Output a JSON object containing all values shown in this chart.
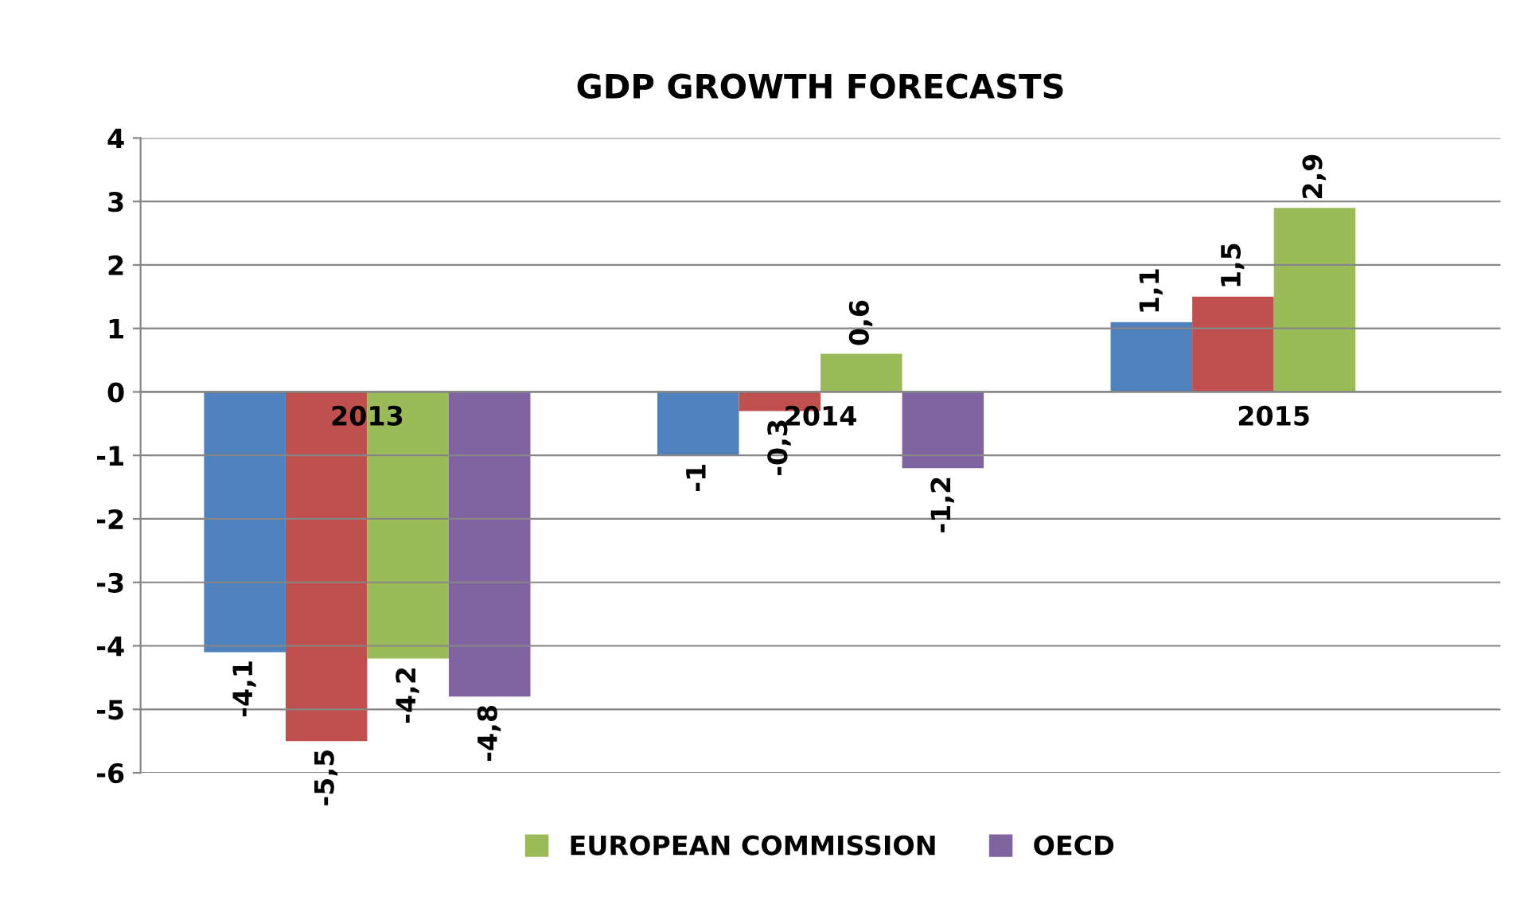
{
  "chart_data": {
    "type": "bar",
    "title": "GDP GROWTH FORECASTS",
    "categories": [
      "2013",
      "2014",
      "2015"
    ],
    "series": [
      {
        "color": "#4f81bd",
        "values": [
          -4.1,
          -1,
          1.1
        ],
        "value_labels": [
          "-4,1",
          "-1",
          "1,1"
        ]
      },
      {
        "color": "#c0504d",
        "values": [
          -5.5,
          -0.3,
          1.5
        ],
        "value_labels": [
          "-5,5",
          "-0,3",
          "1,5"
        ]
      },
      {
        "name": "EUROPEAN COMMISSION",
        "color": "#9bbb59",
        "values": [
          -4.2,
          0.6,
          2.9
        ],
        "value_labels": [
          "-4,2",
          "0,6",
          "2,9"
        ]
      },
      {
        "name": "OECD",
        "color": "#8064a2",
        "values": [
          -4.8,
          -1.2,
          null
        ],
        "value_labels": [
          "-4,8",
          "-1,2",
          null
        ]
      }
    ],
    "ylim": [
      -6,
      4
    ],
    "yticks": [
      -6,
      -5,
      -4,
      -3,
      -2,
      -1,
      0,
      1,
      2,
      3,
      4
    ],
    "grid": "y",
    "legend": "bottom"
  }
}
